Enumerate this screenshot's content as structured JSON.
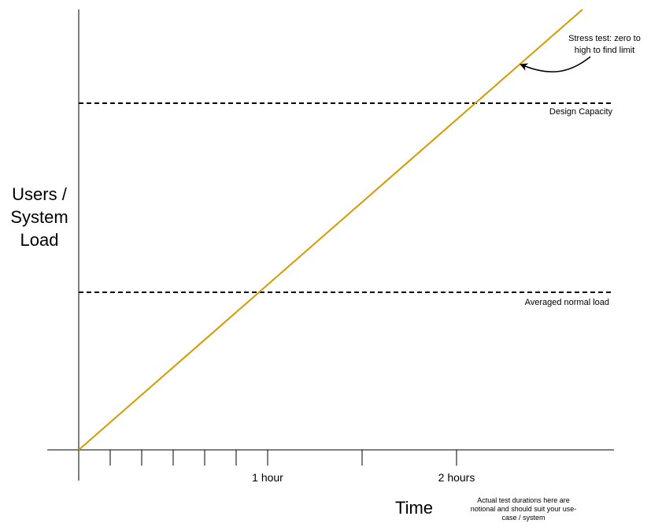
{
  "labels": {
    "y_axis": "Users /\nSystem\nLoad",
    "x_axis": "Time",
    "tick_1h": "1 hour",
    "tick_2h": "2 hours",
    "stress": "Stress test: zero to high to find limit",
    "design": "Design Capacity",
    "normal": "Averaged normal load",
    "note": "Actual test durations here are notional and should suit your use-case / system"
  },
  "colors": {
    "ramp": "#d79b00",
    "axis": "#000000",
    "dashed": "#000000"
  }
}
